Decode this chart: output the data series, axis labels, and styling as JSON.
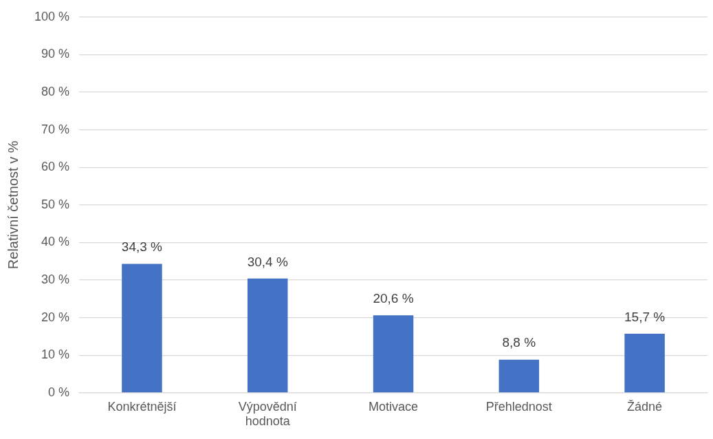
{
  "chart_data": {
    "type": "bar",
    "ylabel": "Relativní četnost v %",
    "categories": [
      "Konkrétnější",
      "Výpovědní hodnota",
      "Motivace",
      "Přehlednost",
      "Žádné"
    ],
    "values": [
      34.3,
      30.4,
      20.6,
      8.8,
      15.7
    ],
    "value_labels": [
      "34,3 %",
      "30,4 %",
      "20,6 %",
      "8,8 %",
      "15,7 %"
    ],
    "color": "#4472c4",
    "ylim": [
      0,
      100
    ],
    "yticks": [
      {
        "value": 0,
        "label": "0 %"
      },
      {
        "value": 10,
        "label": "10 %"
      },
      {
        "value": 20,
        "label": "20 %"
      },
      {
        "value": 30,
        "label": "30 %"
      },
      {
        "value": 40,
        "label": "40 %"
      },
      {
        "value": 50,
        "label": "50 %"
      },
      {
        "value": 60,
        "label": "60 %"
      },
      {
        "value": 70,
        "label": "70 %"
      },
      {
        "value": 80,
        "label": "80 %"
      },
      {
        "value": 90,
        "label": "90 %"
      },
      {
        "value": 100,
        "label": "100 %"
      }
    ],
    "grid": "y"
  }
}
